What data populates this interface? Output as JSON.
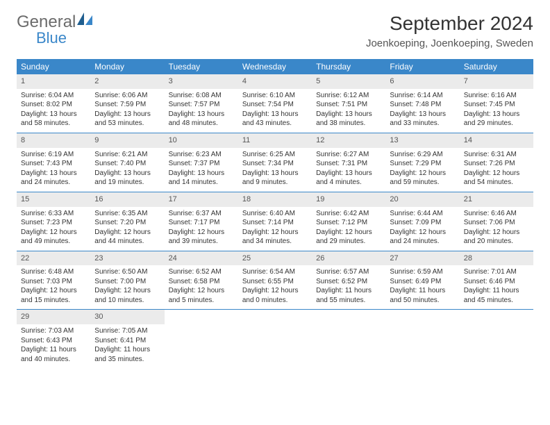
{
  "brand": {
    "part1": "General",
    "part2": "Blue"
  },
  "title": "September 2024",
  "location": "Joenkoeping, Joenkoeping, Sweden",
  "colors": {
    "header_bg": "#3a87c9",
    "header_text": "#ffffff",
    "daynum_bg": "#ebebeb",
    "week_divider": "#3a87c9",
    "body_text": "#333333",
    "logo_gray": "#6b6b6b",
    "logo_blue": "#3a87c9",
    "page_bg": "#ffffff"
  },
  "day_names": [
    "Sunday",
    "Monday",
    "Tuesday",
    "Wednesday",
    "Thursday",
    "Friday",
    "Saturday"
  ],
  "weeks": [
    [
      {
        "n": "1",
        "sr": "Sunrise: 6:04 AM",
        "ss": "Sunset: 8:02 PM",
        "d1": "Daylight: 13 hours",
        "d2": "and 58 minutes."
      },
      {
        "n": "2",
        "sr": "Sunrise: 6:06 AM",
        "ss": "Sunset: 7:59 PM",
        "d1": "Daylight: 13 hours",
        "d2": "and 53 minutes."
      },
      {
        "n": "3",
        "sr": "Sunrise: 6:08 AM",
        "ss": "Sunset: 7:57 PM",
        "d1": "Daylight: 13 hours",
        "d2": "and 48 minutes."
      },
      {
        "n": "4",
        "sr": "Sunrise: 6:10 AM",
        "ss": "Sunset: 7:54 PM",
        "d1": "Daylight: 13 hours",
        "d2": "and 43 minutes."
      },
      {
        "n": "5",
        "sr": "Sunrise: 6:12 AM",
        "ss": "Sunset: 7:51 PM",
        "d1": "Daylight: 13 hours",
        "d2": "and 38 minutes."
      },
      {
        "n": "6",
        "sr": "Sunrise: 6:14 AM",
        "ss": "Sunset: 7:48 PM",
        "d1": "Daylight: 13 hours",
        "d2": "and 33 minutes."
      },
      {
        "n": "7",
        "sr": "Sunrise: 6:16 AM",
        "ss": "Sunset: 7:45 PM",
        "d1": "Daylight: 13 hours",
        "d2": "and 29 minutes."
      }
    ],
    [
      {
        "n": "8",
        "sr": "Sunrise: 6:19 AM",
        "ss": "Sunset: 7:43 PM",
        "d1": "Daylight: 13 hours",
        "d2": "and 24 minutes."
      },
      {
        "n": "9",
        "sr": "Sunrise: 6:21 AM",
        "ss": "Sunset: 7:40 PM",
        "d1": "Daylight: 13 hours",
        "d2": "and 19 minutes."
      },
      {
        "n": "10",
        "sr": "Sunrise: 6:23 AM",
        "ss": "Sunset: 7:37 PM",
        "d1": "Daylight: 13 hours",
        "d2": "and 14 minutes."
      },
      {
        "n": "11",
        "sr": "Sunrise: 6:25 AM",
        "ss": "Sunset: 7:34 PM",
        "d1": "Daylight: 13 hours",
        "d2": "and 9 minutes."
      },
      {
        "n": "12",
        "sr": "Sunrise: 6:27 AM",
        "ss": "Sunset: 7:31 PM",
        "d1": "Daylight: 13 hours",
        "d2": "and 4 minutes."
      },
      {
        "n": "13",
        "sr": "Sunrise: 6:29 AM",
        "ss": "Sunset: 7:29 PM",
        "d1": "Daylight: 12 hours",
        "d2": "and 59 minutes."
      },
      {
        "n": "14",
        "sr": "Sunrise: 6:31 AM",
        "ss": "Sunset: 7:26 PM",
        "d1": "Daylight: 12 hours",
        "d2": "and 54 minutes."
      }
    ],
    [
      {
        "n": "15",
        "sr": "Sunrise: 6:33 AM",
        "ss": "Sunset: 7:23 PM",
        "d1": "Daylight: 12 hours",
        "d2": "and 49 minutes."
      },
      {
        "n": "16",
        "sr": "Sunrise: 6:35 AM",
        "ss": "Sunset: 7:20 PM",
        "d1": "Daylight: 12 hours",
        "d2": "and 44 minutes."
      },
      {
        "n": "17",
        "sr": "Sunrise: 6:37 AM",
        "ss": "Sunset: 7:17 PM",
        "d1": "Daylight: 12 hours",
        "d2": "and 39 minutes."
      },
      {
        "n": "18",
        "sr": "Sunrise: 6:40 AM",
        "ss": "Sunset: 7:14 PM",
        "d1": "Daylight: 12 hours",
        "d2": "and 34 minutes."
      },
      {
        "n": "19",
        "sr": "Sunrise: 6:42 AM",
        "ss": "Sunset: 7:12 PM",
        "d1": "Daylight: 12 hours",
        "d2": "and 29 minutes."
      },
      {
        "n": "20",
        "sr": "Sunrise: 6:44 AM",
        "ss": "Sunset: 7:09 PM",
        "d1": "Daylight: 12 hours",
        "d2": "and 24 minutes."
      },
      {
        "n": "21",
        "sr": "Sunrise: 6:46 AM",
        "ss": "Sunset: 7:06 PM",
        "d1": "Daylight: 12 hours",
        "d2": "and 20 minutes."
      }
    ],
    [
      {
        "n": "22",
        "sr": "Sunrise: 6:48 AM",
        "ss": "Sunset: 7:03 PM",
        "d1": "Daylight: 12 hours",
        "d2": "and 15 minutes."
      },
      {
        "n": "23",
        "sr": "Sunrise: 6:50 AM",
        "ss": "Sunset: 7:00 PM",
        "d1": "Daylight: 12 hours",
        "d2": "and 10 minutes."
      },
      {
        "n": "24",
        "sr": "Sunrise: 6:52 AM",
        "ss": "Sunset: 6:58 PM",
        "d1": "Daylight: 12 hours",
        "d2": "and 5 minutes."
      },
      {
        "n": "25",
        "sr": "Sunrise: 6:54 AM",
        "ss": "Sunset: 6:55 PM",
        "d1": "Daylight: 12 hours",
        "d2": "and 0 minutes."
      },
      {
        "n": "26",
        "sr": "Sunrise: 6:57 AM",
        "ss": "Sunset: 6:52 PM",
        "d1": "Daylight: 11 hours",
        "d2": "and 55 minutes."
      },
      {
        "n": "27",
        "sr": "Sunrise: 6:59 AM",
        "ss": "Sunset: 6:49 PM",
        "d1": "Daylight: 11 hours",
        "d2": "and 50 minutes."
      },
      {
        "n": "28",
        "sr": "Sunrise: 7:01 AM",
        "ss": "Sunset: 6:46 PM",
        "d1": "Daylight: 11 hours",
        "d2": "and 45 minutes."
      }
    ],
    [
      {
        "n": "29",
        "sr": "Sunrise: 7:03 AM",
        "ss": "Sunset: 6:43 PM",
        "d1": "Daylight: 11 hours",
        "d2": "and 40 minutes."
      },
      {
        "n": "30",
        "sr": "Sunrise: 7:05 AM",
        "ss": "Sunset: 6:41 PM",
        "d1": "Daylight: 11 hours",
        "d2": "and 35 minutes."
      },
      {
        "empty": true
      },
      {
        "empty": true
      },
      {
        "empty": true
      },
      {
        "empty": true
      },
      {
        "empty": true
      }
    ]
  ]
}
